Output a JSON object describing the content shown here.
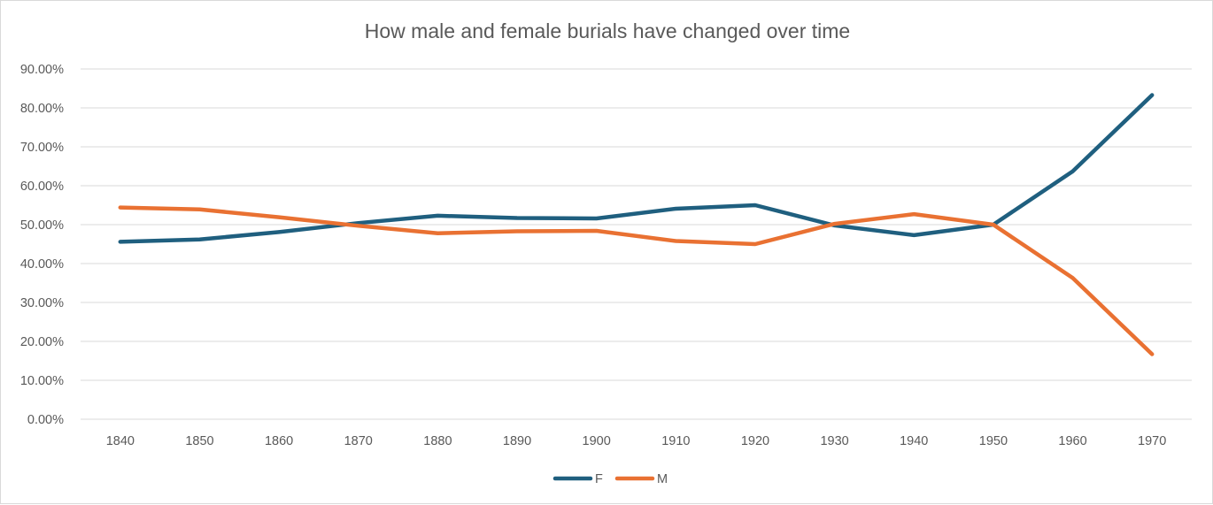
{
  "chart_data": {
    "type": "line",
    "title": "How male and female burials have changed over time",
    "xlabel": "",
    "ylabel": "",
    "categories": [
      "1840",
      "1850",
      "1860",
      "1870",
      "1880",
      "1890",
      "1900",
      "1910",
      "1920",
      "1930",
      "1940",
      "1950",
      "1960",
      "1970"
    ],
    "y_ticks": [
      "0.00%",
      "10.00%",
      "20.00%",
      "30.00%",
      "40.00%",
      "50.00%",
      "60.00%",
      "70.00%",
      "80.00%",
      "90.00%"
    ],
    "ylim": [
      0,
      90
    ],
    "grid": true,
    "legend_position": "bottom",
    "series": [
      {
        "name": "F",
        "color": "#1f5f7f",
        "values": [
          45.6,
          46.2,
          48.1,
          50.4,
          52.3,
          51.7,
          51.6,
          54.1,
          55.0,
          49.8,
          47.3,
          50.0,
          63.7,
          83.3
        ]
      },
      {
        "name": "M",
        "color": "#e97132",
        "values": [
          54.4,
          53.9,
          51.9,
          49.7,
          47.8,
          48.3,
          48.4,
          45.8,
          45.0,
          50.2,
          52.7,
          50.0,
          36.3,
          16.7
        ]
      }
    ]
  }
}
